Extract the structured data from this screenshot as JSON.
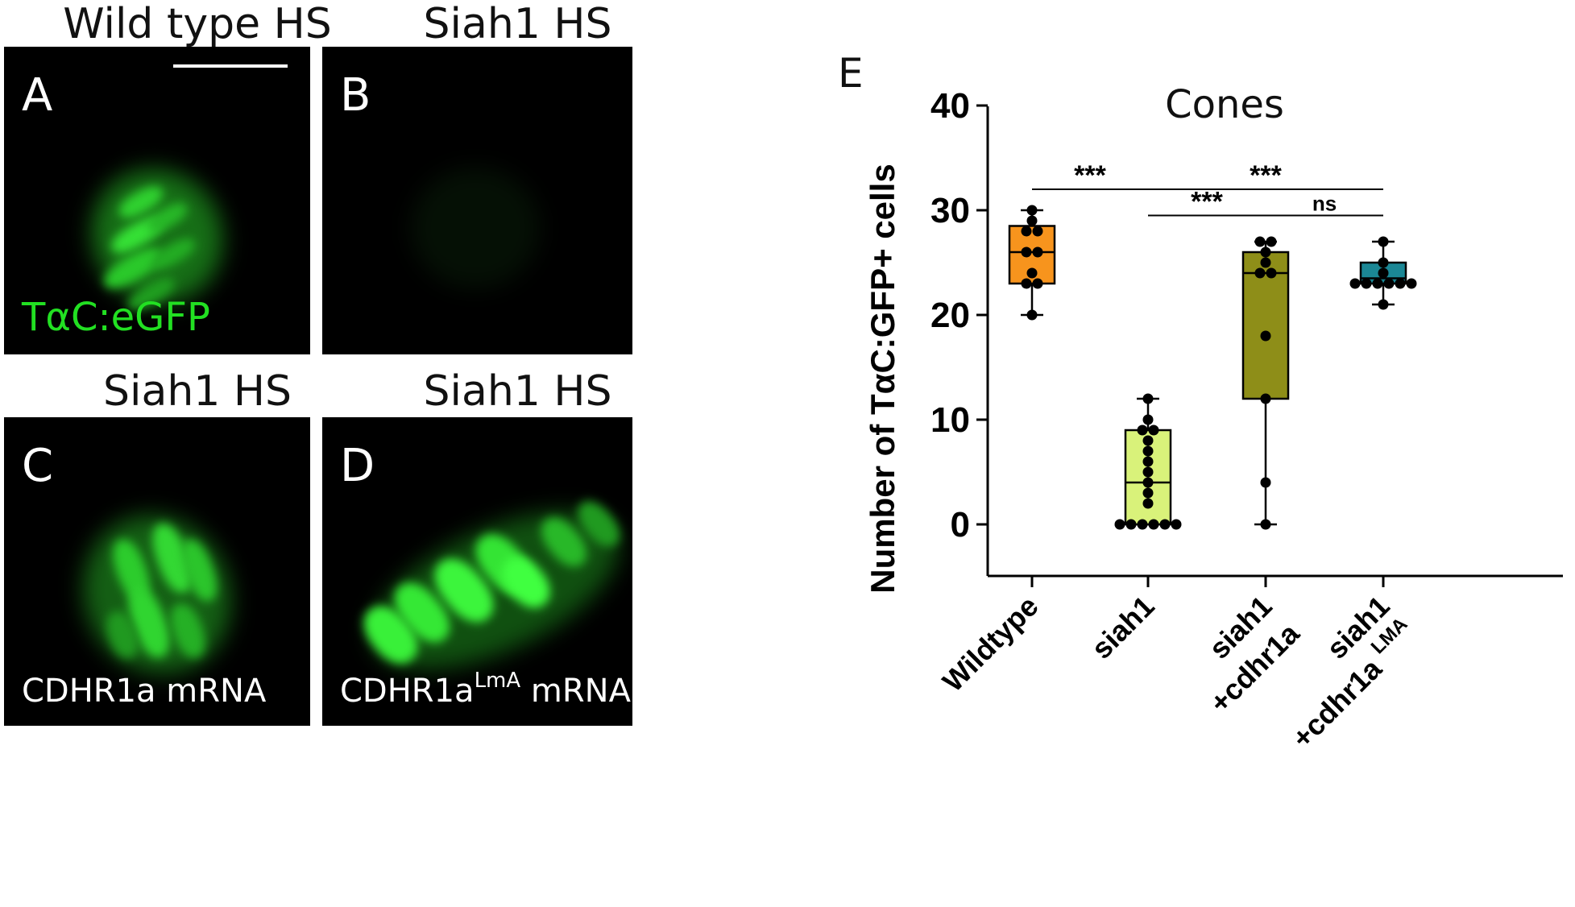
{
  "panels": [
    {
      "id": "A",
      "title": "Wild type HS",
      "label": "A",
      "note": "TαC:eGFP",
      "note_sup": ""
    },
    {
      "id": "B",
      "title": "Siah1 HS",
      "label": "B",
      "note": "",
      "note_sup": ""
    },
    {
      "id": "C",
      "title": "Siah1 HS",
      "label": "C",
      "note": "CDHR1a mRNA",
      "note_sup": ""
    },
    {
      "id": "D",
      "title": "Siah1 HS",
      "label": "D",
      "note_pre": "CDHR1a",
      "note_sup": "LmA",
      "note_post": " mRNA"
    }
  ],
  "chart_data": {
    "type": "box",
    "panel_label": "E",
    "title": "Cones",
    "ylabel": "Number of TαC:GFP+ cells",
    "ylim": [
      -5,
      40
    ],
    "yticks": [
      0,
      10,
      20,
      30,
      40
    ],
    "categories": [
      {
        "lines": [
          "Wildtype"
        ],
        "sup": ""
      },
      {
        "lines": [
          "siah1"
        ],
        "sup": ""
      },
      {
        "lines": [
          "siah1",
          "+cdhr1a"
        ],
        "sup": ""
      },
      {
        "lines": [
          "siah1",
          "+cdhr1a"
        ],
        "sup": "LMA"
      }
    ],
    "boxes": [
      {
        "name": "Wildtype",
        "color": "#F7941D",
        "min": 20,
        "q1": 23,
        "median": 26,
        "q3": 28.5,
        "max": 30,
        "points": [
          30,
          29,
          28,
          28,
          26,
          26,
          24,
          23,
          23,
          20
        ]
      },
      {
        "name": "siah1",
        "color": "#D9F27A",
        "min": 0,
        "q1": 0,
        "median": 4,
        "q3": 9,
        "max": 12,
        "points": [
          12,
          10,
          9,
          9,
          8,
          7,
          6,
          5,
          4,
          3,
          2,
          0,
          0,
          0,
          0,
          0,
          0
        ]
      },
      {
        "name": "siah1+cdhr1a",
        "color": "#8E8E18",
        "min": 0,
        "q1": 12,
        "median": 24,
        "q3": 26,
        "max": 27,
        "points": [
          27,
          27,
          26,
          25,
          24,
          24,
          18,
          12,
          4,
          0
        ]
      },
      {
        "name": "siah1+cdhr1aLMA",
        "color": "#1B8795",
        "min": 21,
        "q1": 23,
        "median": 23.5,
        "q3": 25,
        "max": 27,
        "points": [
          27,
          25,
          24,
          23,
          23,
          23,
          23,
          23,
          23,
          21
        ]
      }
    ],
    "significance": [
      {
        "from": 0,
        "to": 1,
        "y": 32,
        "label": "***"
      },
      {
        "from": 1,
        "to": 3,
        "y": 32,
        "label": "***"
      },
      {
        "from": 1,
        "to": 2,
        "y": 29.5,
        "label": "***"
      },
      {
        "from": 2,
        "to": 3,
        "y": 29.5,
        "label": "ns"
      }
    ]
  }
}
